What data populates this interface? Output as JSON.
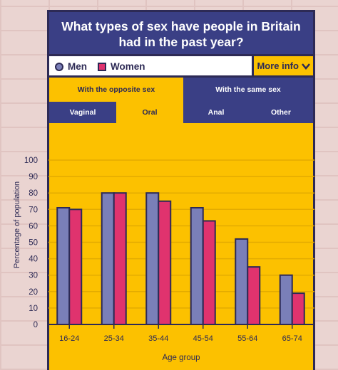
{
  "title": "What types of sex have people in Britain had in the past year?",
  "legend": {
    "men": "Men",
    "women": "Women"
  },
  "more_info": "More info",
  "tabs_primary": [
    "With the opposite sex",
    "With the same sex"
  ],
  "tabs_secondary": [
    "Vaginal",
    "Oral",
    "Anal",
    "Other"
  ],
  "colors": {
    "men": "#7a7fb8",
    "women": "#e0336e",
    "panel": "#fcc100",
    "dark": "#3a3f85"
  },
  "chart_data": {
    "type": "bar",
    "categories": [
      "16-24",
      "25-34",
      "35-44",
      "45-54",
      "55-64",
      "65-74"
    ],
    "series": [
      {
        "name": "Men",
        "values": [
          71,
          80,
          80,
          71,
          52,
          30
        ]
      },
      {
        "name": "Women",
        "values": [
          70,
          80,
          75,
          63,
          35,
          19
        ]
      }
    ],
    "xlabel": "Age group",
    "ylabel": "Percentage of population",
    "ylim": [
      0,
      100
    ],
    "yticks": [
      0,
      10,
      20,
      30,
      40,
      50,
      60,
      70,
      80,
      90,
      100
    ],
    "grid": true
  }
}
